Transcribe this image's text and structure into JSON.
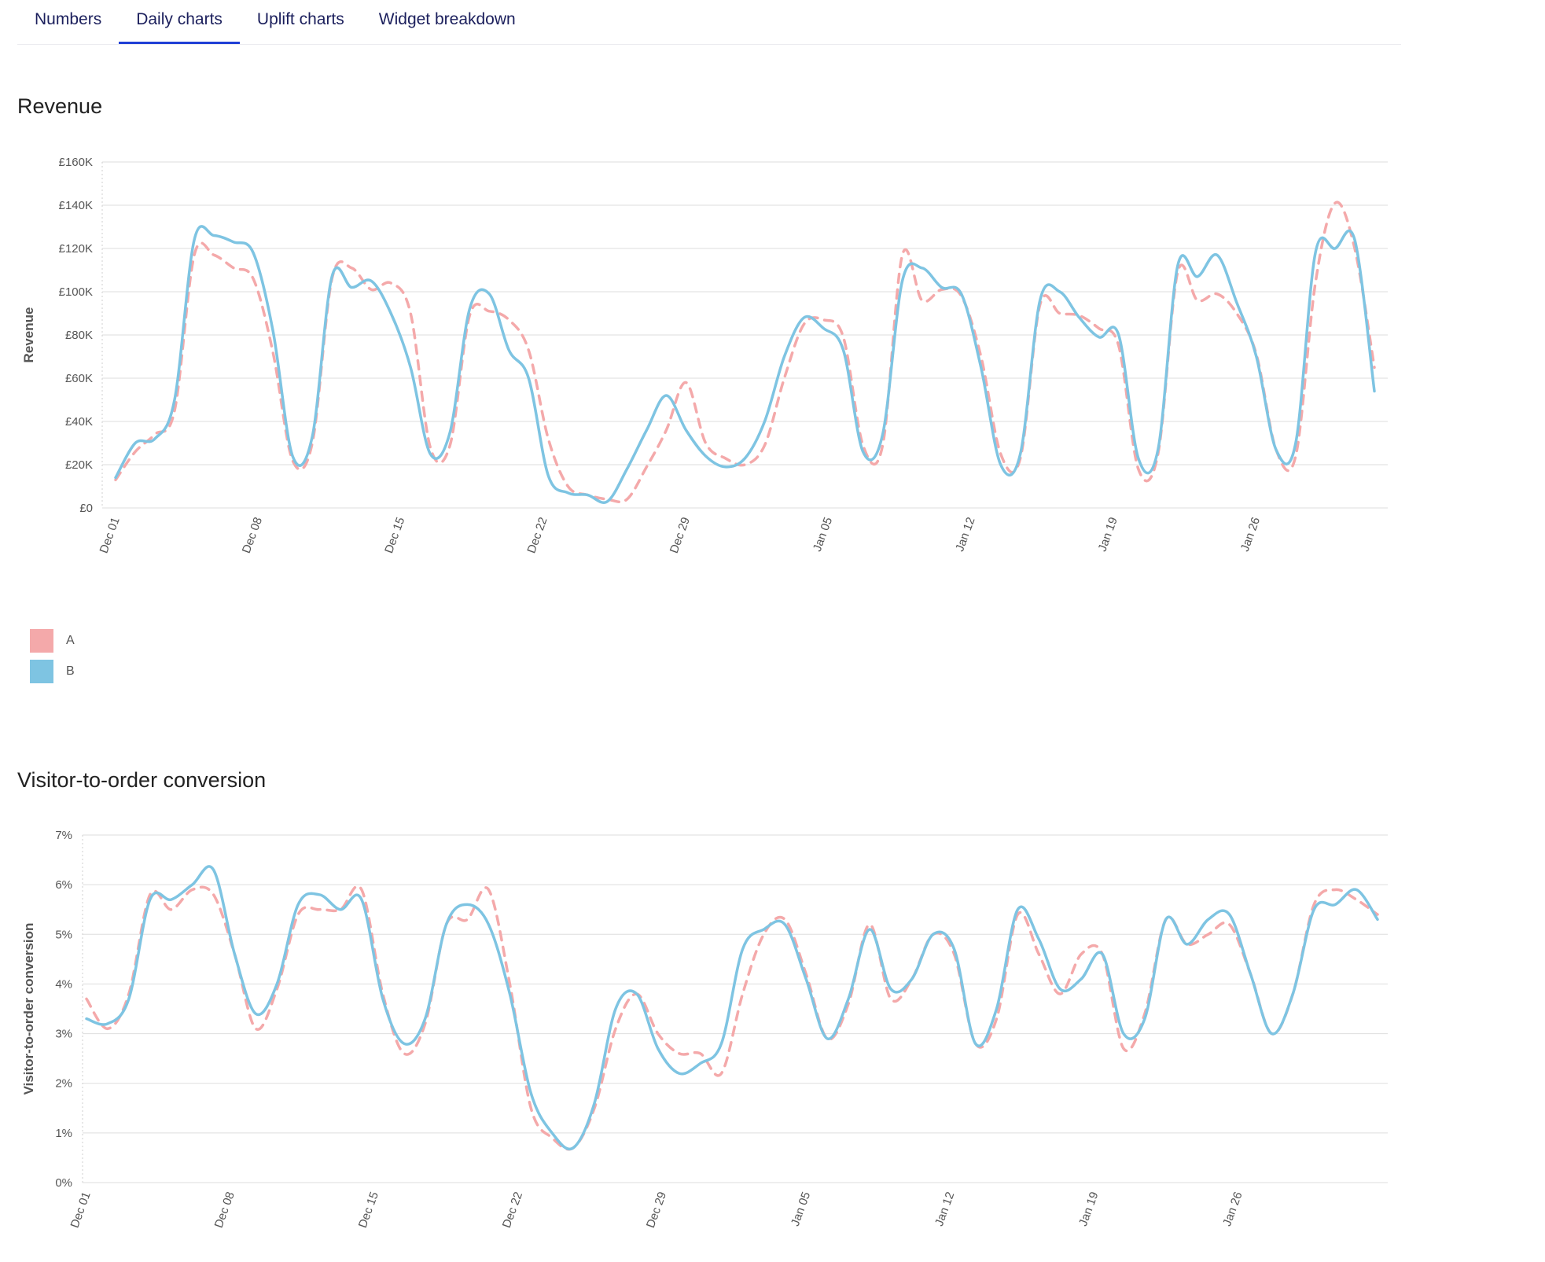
{
  "tabs": [
    {
      "label": "Numbers"
    },
    {
      "label": "Daily charts",
      "active": true
    },
    {
      "label": "Uplift charts"
    },
    {
      "label": "Widget breakdown"
    }
  ],
  "colors": {
    "series_a": "#f4a9aa",
    "series_b": "#7ec4e2",
    "active_tab": "#1f3fd6"
  },
  "legend": [
    {
      "name": "A",
      "color": "#f4a9aa"
    },
    {
      "name": "B",
      "color": "#7ec4e2"
    }
  ],
  "charts": [
    {
      "section_title": "Revenue"
    },
    {
      "section_title": "Visitor-to-order conversion"
    }
  ],
  "chart_data": [
    {
      "type": "line",
      "title": "Revenue",
      "xlabel": "",
      "ylabel": "Revenue",
      "y_ticks": [
        "£0",
        "£20K",
        "£40K",
        "£60K",
        "£80K",
        "£100K",
        "£120K",
        "£140K",
        "£160K"
      ],
      "ylim": [
        0,
        160000
      ],
      "x_ticks": [
        "Dec 01",
        "Dec 08",
        "Dec 15",
        "Dec 22",
        "Dec 29",
        "Jan 05",
        "Jan 12",
        "Jan 19",
        "Jan 26"
      ],
      "x_start": "Dec 01",
      "x_end": "Feb 02",
      "grid": true,
      "legend_position": "bottom-left",
      "series": [
        {
          "name": "A",
          "style": "dashed",
          "values": [
            13000,
            26000,
            34000,
            45000,
            117000,
            117000,
            111000,
            106000,
            72000,
            22000,
            30000,
            106000,
            111000,
            101000,
            104000,
            90000,
            28000,
            29000,
            89000,
            91000,
            87000,
            73000,
            32000,
            10000,
            6000,
            4000,
            4000,
            19000,
            36000,
            58000,
            30000,
            23000,
            20000,
            29000,
            60000,
            85000,
            87000,
            79000,
            29000,
            29000,
            117000,
            96000,
            101000,
            98000,
            70000,
            25000,
            23000,
            94000,
            90000,
            89000,
            83000,
            75000,
            18000,
            25000,
            109000,
            96000,
            99000,
            90000,
            71000,
            27000,
            24000,
            104000,
            141000,
            120000,
            65000
          ]
        },
        {
          "name": "B",
          "style": "solid",
          "values": [
            14000,
            30000,
            32000,
            50000,
            124000,
            126000,
            123000,
            118000,
            82000,
            24000,
            33000,
            107000,
            102000,
            105000,
            90000,
            65000,
            25000,
            35000,
            92000,
            99000,
            73000,
            60000,
            15000,
            7000,
            6000,
            3000,
            18000,
            36000,
            52000,
            36000,
            24000,
            19000,
            23000,
            40000,
            70000,
            88000,
            83000,
            73000,
            26000,
            34000,
            105000,
            111000,
            102000,
            99000,
            65000,
            20000,
            25000,
            96000,
            100000,
            88000,
            79000,
            80000,
            23000,
            27000,
            112000,
            107000,
            117000,
            95000,
            70000,
            27000,
            30000,
            118000,
            120000,
            124000,
            54000
          ]
        }
      ]
    },
    {
      "type": "line",
      "title": "Visitor-to-order conversion",
      "xlabel": "",
      "ylabel": "Visitor-to-order conversion",
      "y_ticks": [
        "0%",
        "1%",
        "2%",
        "3%",
        "4%",
        "5%",
        "6%",
        "7%"
      ],
      "ylim": [
        0,
        7
      ],
      "x_ticks": [
        "Dec 01",
        "Dec 08",
        "Dec 15",
        "Dec 22",
        "Dec 29",
        "Jan 05",
        "Jan 12",
        "Jan 19",
        "Jan 26"
      ],
      "x_start": "Dec 01",
      "x_end": "Feb 02",
      "grid": true,
      "series": [
        {
          "name": "A",
          "style": "dashed",
          "values": [
            3.7,
            3.1,
            3.8,
            5.8,
            5.5,
            5.9,
            5.8,
            4.6,
            3.1,
            3.9,
            5.4,
            5.5,
            5.5,
            5.9,
            3.8,
            2.6,
            3.2,
            5.2,
            5.3,
            5.9,
            4.0,
            1.5,
            0.9,
            0.7,
            1.5,
            3.1,
            3.8,
            3.0,
            2.6,
            2.6,
            2.2,
            3.8,
            5.0,
            5.3,
            4.2,
            2.9,
            3.6,
            5.2,
            3.7,
            4.1,
            5.0,
            4.6,
            2.8,
            3.3,
            5.4,
            4.6,
            3.8,
            4.6,
            4.6,
            2.7,
            3.4,
            5.3,
            4.8,
            5.0,
            5.2,
            4.2,
            3.0,
            3.8,
            5.6,
            5.9,
            5.7,
            5.4
          ]
        },
        {
          "name": "B",
          "style": "solid",
          "values": [
            3.3,
            3.2,
            3.7,
            5.7,
            5.7,
            6.0,
            6.3,
            4.6,
            3.4,
            4.0,
            5.6,
            5.8,
            5.5,
            5.7,
            3.7,
            2.8,
            3.3,
            5.2,
            5.6,
            5.2,
            3.8,
            1.8,
            1.0,
            0.7,
            1.6,
            3.5,
            3.8,
            2.7,
            2.2,
            2.4,
            2.8,
            4.7,
            5.1,
            5.2,
            4.1,
            2.9,
            3.7,
            5.1,
            3.9,
            4.1,
            5.0,
            4.7,
            2.8,
            3.5,
            5.5,
            4.9,
            3.9,
            4.1,
            4.6,
            3.0,
            3.3,
            5.3,
            4.8,
            5.3,
            5.4,
            4.2,
            3.0,
            3.8,
            5.5,
            5.6,
            5.9,
            5.3
          ]
        }
      ]
    }
  ]
}
